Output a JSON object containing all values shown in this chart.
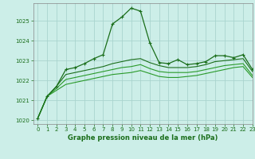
{
  "title": "Graphe pression niveau de la mer (hPa)",
  "background_color": "#cceee8",
  "grid_color": "#aad4ce",
  "xlim": [
    -0.5,
    23
  ],
  "ylim": [
    1019.8,
    1025.9
  ],
  "yticks": [
    1020,
    1021,
    1022,
    1023,
    1024,
    1025
  ],
  "xticks": [
    0,
    1,
    2,
    3,
    4,
    5,
    6,
    7,
    8,
    9,
    10,
    11,
    12,
    13,
    14,
    15,
    16,
    17,
    18,
    19,
    20,
    21,
    22,
    23
  ],
  "series": [
    {
      "x": [
        0,
        1,
        2,
        3,
        4,
        5,
        6,
        7,
        8,
        9,
        10,
        11,
        12,
        13,
        14,
        15,
        16,
        17,
        18,
        19,
        20,
        21,
        22,
        23
      ],
      "y": [
        1020.1,
        1021.2,
        1021.7,
        1022.55,
        1022.65,
        1022.85,
        1023.1,
        1023.3,
        1024.85,
        1025.2,
        1025.65,
        1025.5,
        1023.9,
        1022.9,
        1022.85,
        1023.05,
        1022.8,
        1022.85,
        1022.95,
        1023.25,
        1023.25,
        1023.15,
        1023.3,
        1022.55
      ],
      "color": "#1a6e1a",
      "lw": 0.9,
      "marker": "+"
    },
    {
      "x": [
        0,
        1,
        2,
        3,
        4,
        5,
        6,
        7,
        8,
        9,
        10,
        11,
        12,
        13,
        14,
        15,
        16,
        17,
        18,
        19,
        20,
        21,
        22,
        23
      ],
      "y": [
        1020.1,
        1021.2,
        1021.7,
        1022.3,
        1022.4,
        1022.5,
        1022.6,
        1022.7,
        1022.85,
        1022.95,
        1023.05,
        1023.1,
        1022.9,
        1022.75,
        1022.65,
        1022.65,
        1022.65,
        1022.7,
        1022.8,
        1022.95,
        1023.0,
        1023.05,
        1023.1,
        1022.45
      ],
      "color": "#1a6e1a",
      "lw": 0.8,
      "marker": null
    },
    {
      "x": [
        0,
        1,
        2,
        3,
        4,
        5,
        6,
        7,
        8,
        9,
        10,
        11,
        12,
        13,
        14,
        15,
        16,
        17,
        18,
        19,
        20,
        21,
        22,
        23
      ],
      "y": [
        1020.1,
        1021.2,
        1021.6,
        1022.05,
        1022.15,
        1022.25,
        1022.35,
        1022.45,
        1022.55,
        1022.65,
        1022.7,
        1022.8,
        1022.6,
        1022.45,
        1022.4,
        1022.4,
        1022.4,
        1022.45,
        1022.55,
        1022.65,
        1022.75,
        1022.8,
        1022.85,
        1022.25
      ],
      "color": "#2a9a2a",
      "lw": 0.8,
      "marker": null
    },
    {
      "x": [
        0,
        1,
        2,
        3,
        4,
        5,
        6,
        7,
        8,
        9,
        10,
        11,
        12,
        13,
        14,
        15,
        16,
        17,
        18,
        19,
        20,
        21,
        22,
        23
      ],
      "y": [
        1020.1,
        1021.2,
        1021.5,
        1021.8,
        1021.9,
        1022.0,
        1022.1,
        1022.2,
        1022.3,
        1022.35,
        1022.4,
        1022.5,
        1022.35,
        1022.2,
        1022.15,
        1022.15,
        1022.2,
        1022.25,
        1022.35,
        1022.45,
        1022.55,
        1022.65,
        1022.7,
        1022.15
      ],
      "color": "#2a9a2a",
      "lw": 0.8,
      "marker": null
    }
  ]
}
